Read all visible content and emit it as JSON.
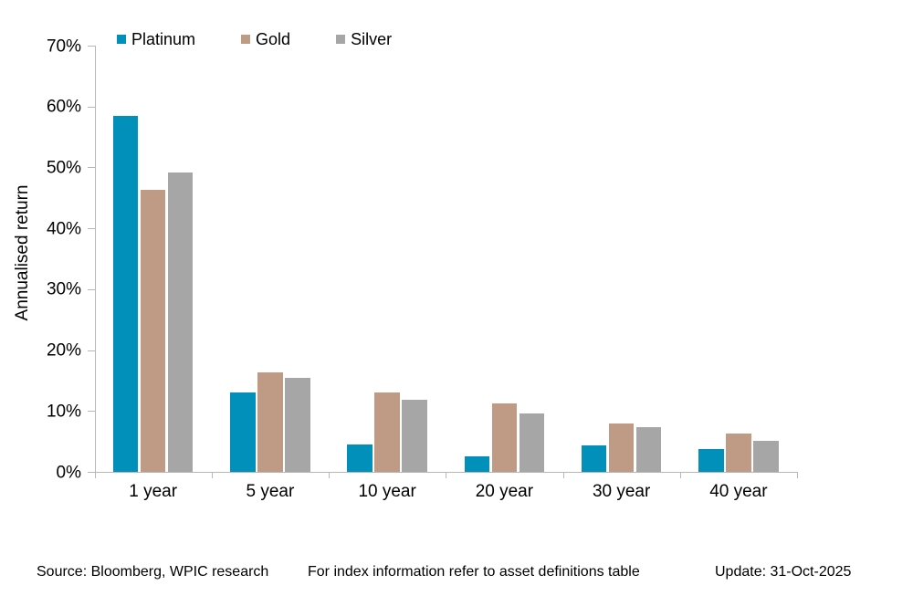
{
  "chart_data": {
    "type": "bar",
    "title": "",
    "ylabel": "Annualised return",
    "xlabel": "",
    "categories": [
      "1 year",
      "5 year",
      "10 year",
      "20 year",
      "30 year",
      "40 year"
    ],
    "series": [
      {
        "name": "Platinum",
        "color": "#0090BA",
        "values": [
          58.4,
          13.1,
          4.5,
          2.5,
          4.3,
          3.8
        ]
      },
      {
        "name": "Gold",
        "color": "#BF9B85",
        "values": [
          46.3,
          16.3,
          13.1,
          11.2,
          8.0,
          6.3
        ]
      },
      {
        "name": "Silver",
        "color": "#A6A6A6",
        "values": [
          49.2,
          15.5,
          11.9,
          9.6,
          7.4,
          5.1
        ]
      }
    ],
    "ylim": [
      0,
      70
    ],
    "ytick_step": 10,
    "ytick_suffix": "%",
    "ytick_labels": [
      "0%",
      "10%",
      "20%",
      "30%",
      "40%",
      "50%",
      "60%",
      "70%"
    ],
    "legend_position": "top",
    "grid": false,
    "axis_color": "#B7B7B7",
    "text_color": "#000000"
  },
  "footer": {
    "source": "Source: Bloomberg, WPIC research",
    "note": "For index information refer to asset definitions table",
    "update": "Update: 31-Oct-2025"
  }
}
